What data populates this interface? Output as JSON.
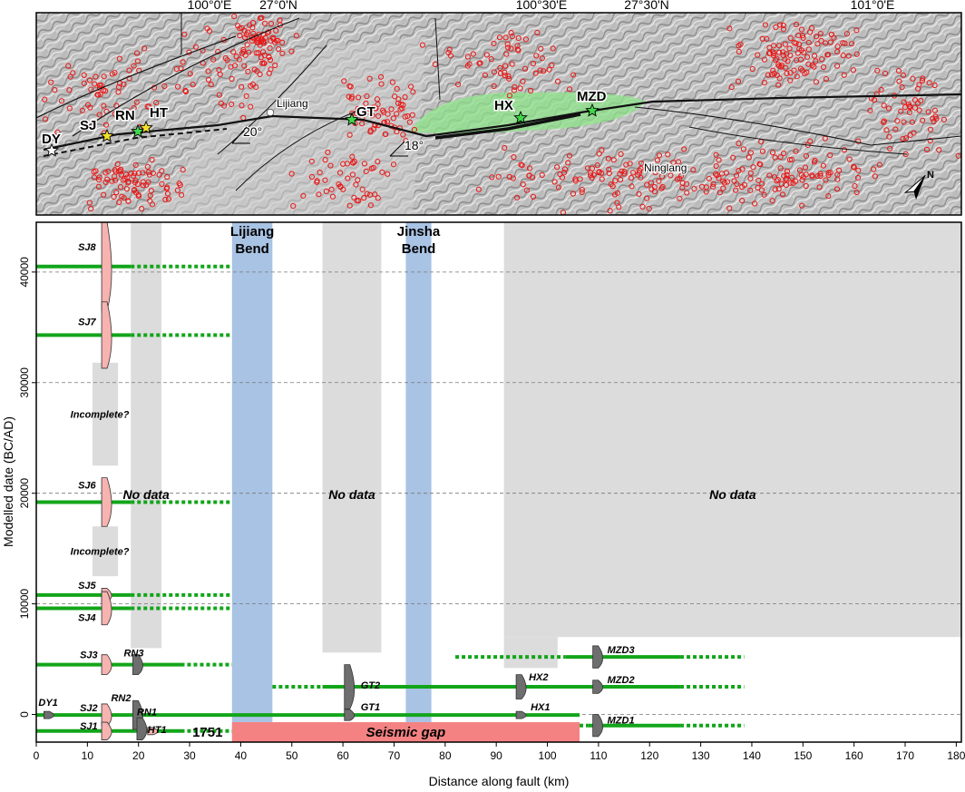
{
  "colors": {
    "rupture": "#12a51a",
    "no_data": "#dcdcdc",
    "bend": "#a9c3e4",
    "seismic_gap": "#f48282",
    "site_pdf_red": "#f6b3b0",
    "site_pdf_dark": "#6e6e6e",
    "seismicity": "#e81818",
    "slip_zone": "#8ee38a",
    "gridline": "#777777"
  },
  "map": {
    "lon_labels": [
      "100°0'E",
      "100°30'E",
      "101°0'E"
    ],
    "lat_labels": [
      "27°0'N",
      "27°30'N"
    ],
    "site_labels": [
      "DY",
      "SJ",
      "RN",
      "HT",
      "GT",
      "HX",
      "MZD"
    ],
    "place_labels": [
      "Lijiang",
      "Ninglang"
    ],
    "angle_labels": [
      "20°",
      "18°"
    ],
    "north_label": "N",
    "icons": [
      "star-icon",
      "north-arrow-icon",
      "town-dot-icon"
    ]
  },
  "chart_data": {
    "type": "timeline",
    "xlabel": "Distance along fault (km)",
    "ylabel": "Modelled date (BC/AD)",
    "xlim": [
      0,
      181
    ],
    "ylim": [
      -2500,
      44500
    ],
    "xticks": [
      0,
      10,
      20,
      30,
      40,
      50,
      60,
      70,
      80,
      90,
      100,
      110,
      120,
      130,
      140,
      150,
      160,
      170,
      180
    ],
    "yticks": [
      0,
      10000,
      20000,
      30000,
      40000
    ],
    "gridlines_y": [
      0,
      10000,
      20000,
      30000,
      40000
    ],
    "regions": [
      {
        "kind": "no_data",
        "label": "No data",
        "x": [
          18.5,
          24.5
        ],
        "y": [
          6000,
          44500
        ]
      },
      {
        "kind": "no_data",
        "label": "No data",
        "x": [
          56,
          67.5
        ],
        "y": [
          5600,
          44500
        ]
      },
      {
        "kind": "no_data",
        "label": "No data",
        "x": [
          91.5,
          181
        ],
        "y": [
          7000,
          44500
        ]
      },
      {
        "kind": "no_data",
        "label": "",
        "x": [
          91.5,
          102
        ],
        "y": [
          4200,
          7000
        ]
      },
      {
        "kind": "incomplete",
        "label": "Incomplete?",
        "x": [
          11,
          16
        ],
        "y": [
          22500,
          31800
        ]
      },
      {
        "kind": "incomplete",
        "label": "Incomplete?",
        "x": [
          11,
          16
        ],
        "y": [
          12500,
          17000
        ]
      },
      {
        "kind": "bend",
        "label": "Lijiang Bend",
        "x": [
          38.3,
          46.2
        ],
        "y": [
          -2500,
          44500
        ]
      },
      {
        "kind": "bend",
        "label": "Jinsha Bend",
        "x": [
          72.3,
          77.3
        ],
        "y": [
          -2500,
          44500
        ]
      },
      {
        "kind": "gap",
        "label": "Seismic gap",
        "x": [
          38.3,
          106.3
        ],
        "y": [
          -2500,
          -700
        ]
      }
    ],
    "ruptures": [
      {
        "label": "SJ8",
        "y": 40500,
        "solid": [
          0,
          18.5
        ],
        "dotted": [
          [
            18.5,
            38.3
          ]
        ]
      },
      {
        "label": "SJ7",
        "y": 34300,
        "solid": [
          0,
          18.5
        ],
        "dotted": [
          [
            18.5,
            38.3
          ]
        ]
      },
      {
        "label": "SJ6",
        "y": 19200,
        "solid": [
          0,
          18.5
        ],
        "dotted": [
          [
            18.5,
            38.3
          ]
        ]
      },
      {
        "label": "SJ5",
        "y": 10800,
        "solid": [
          0,
          18.5
        ],
        "dotted": [
          [
            18.5,
            38.3
          ]
        ]
      },
      {
        "label": "SJ4",
        "y": 9600,
        "solid": [
          0,
          18.5
        ],
        "dotted": [
          [
            18.5,
            38.3
          ]
        ]
      },
      {
        "label": "SJ3 / RN3",
        "y": 4500,
        "solid": [
          0,
          28.3
        ],
        "dotted": [
          [
            28.3,
            38.3
          ]
        ]
      },
      {
        "label": "GT2 / HX2 / MZD2",
        "y": 2500,
        "solid": [
          56,
          126
        ],
        "dotted": [
          [
            46.2,
            56
          ],
          [
            126,
            138.5
          ]
        ]
      },
      {
        "label": "MZD3",
        "y": 5200,
        "solid": [
          103.5,
          126
        ],
        "dotted": [
          [
            82,
            103.5
          ],
          [
            126,
            138.5
          ]
        ]
      },
      {
        "label": "DY1 / SJ2 / RN2 / RN1 / GT1 / HX1",
        "y": -50,
        "solid": [
          0,
          106.3
        ],
        "dotted": []
      },
      {
        "label": "SJ1 / HT1",
        "y": -1500,
        "solid": [
          0,
          28.3
        ],
        "dotted": [
          [
            28.3,
            38.3
          ]
        ]
      },
      {
        "label": "MZD1",
        "y": -1000,
        "solid": [
          108,
          126
        ],
        "dotted": [
          [
            106.3,
            108
          ],
          [
            126,
            138.5
          ]
        ]
      }
    ],
    "site_pdfs": [
      {
        "label": "SJ8",
        "site": "SJ",
        "x": 13.5,
        "y": 40500,
        "spread": 4000,
        "color": "red"
      },
      {
        "label": "SJ7",
        "site": "SJ",
        "x": 13.5,
        "y": 34300,
        "spread": 3000,
        "color": "red"
      },
      {
        "label": "SJ6",
        "site": "SJ",
        "x": 13.5,
        "y": 19200,
        "spread": 2200,
        "color": "red"
      },
      {
        "label": "SJ5",
        "site": "SJ",
        "x": 13.5,
        "y": 10800,
        "spread": 600,
        "color": "red"
      },
      {
        "label": "SJ4",
        "site": "SJ",
        "x": 13.5,
        "y": 9600,
        "spread": 1500,
        "color": "red"
      },
      {
        "label": "SJ3",
        "site": "SJ",
        "x": 13.5,
        "y": 4500,
        "spread": 900,
        "color": "red"
      },
      {
        "label": "SJ2",
        "site": "SJ",
        "x": 13.5,
        "y": -50,
        "spread": 1000,
        "color": "red"
      },
      {
        "label": "SJ1",
        "site": "SJ",
        "x": 13.5,
        "y": -1500,
        "spread": 800,
        "color": "red"
      },
      {
        "label": "RN3",
        "site": "RN",
        "x": 19.6,
        "y": 4500,
        "spread": 900,
        "color": "dark"
      },
      {
        "label": "RN2",
        "site": "RN",
        "x": 19.6,
        "y": -50,
        "spread": 1300,
        "color": "dark"
      },
      {
        "label": "RN1",
        "site": "RN",
        "x": 20.4,
        "y": -1300,
        "spread": 1000,
        "color": "dark"
      },
      {
        "label": "HT1",
        "site": "HT",
        "x": 22.5,
        "y": -1500,
        "spread": 300,
        "color": "red"
      },
      {
        "label": "DY1",
        "site": "DY",
        "x": 2.2,
        "y": -50,
        "spread": 300,
        "color": "dark"
      },
      {
        "label": "GT2",
        "site": "GT",
        "x": 61,
        "y": 2500,
        "spread": 2000,
        "color": "dark"
      },
      {
        "label": "GT1",
        "site": "GT",
        "x": 61,
        "y": -50,
        "spread": 500,
        "color": "dark"
      },
      {
        "label": "HX2",
        "site": "HX",
        "x": 94.6,
        "y": 2500,
        "spread": 1100,
        "color": "dark"
      },
      {
        "label": "HX1",
        "site": "HX",
        "x": 94.6,
        "y": -50,
        "spread": 150,
        "color": "dark"
      },
      {
        "label": "MZD3",
        "site": "MZD",
        "x": 109.6,
        "y": 5200,
        "spread": 1000,
        "color": "dark"
      },
      {
        "label": "MZD2",
        "site": "MZD",
        "x": 109.6,
        "y": 2500,
        "spread": 600,
        "color": "dark"
      },
      {
        "label": "MZD1",
        "site": "MZD",
        "x": 109.6,
        "y": -1000,
        "spread": 1000,
        "color": "dark"
      }
    ],
    "annotations": [
      {
        "label": "1751",
        "x": 33.5,
        "y": -1500
      }
    ]
  }
}
